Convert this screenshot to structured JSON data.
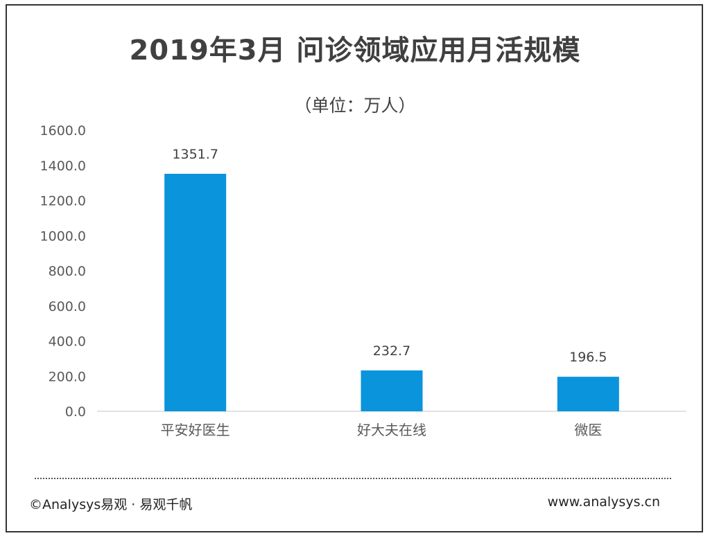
{
  "chart_data": {
    "type": "bar",
    "title": "2019年3月 问诊领域应用月活规模",
    "subtitle": "（单位：万人）",
    "categories": [
      "平安好医生",
      "好大夫在线",
      "微医"
    ],
    "values": [
      1351.7,
      232.7,
      196.5
    ],
    "value_labels": [
      "1351.7",
      "232.7",
      "196.5"
    ],
    "ylim": [
      0,
      1600
    ],
    "yticks": [
      "0.0",
      "200.0",
      "400.0",
      "600.0",
      "800.0",
      "1000.0",
      "1200.0",
      "1400.0",
      "1600.0"
    ],
    "grid": false,
    "bar_color": "#0a94dc"
  },
  "footer": {
    "left": "©Analysys易观 · 易观千帆",
    "right": "www.analysys.cn"
  }
}
